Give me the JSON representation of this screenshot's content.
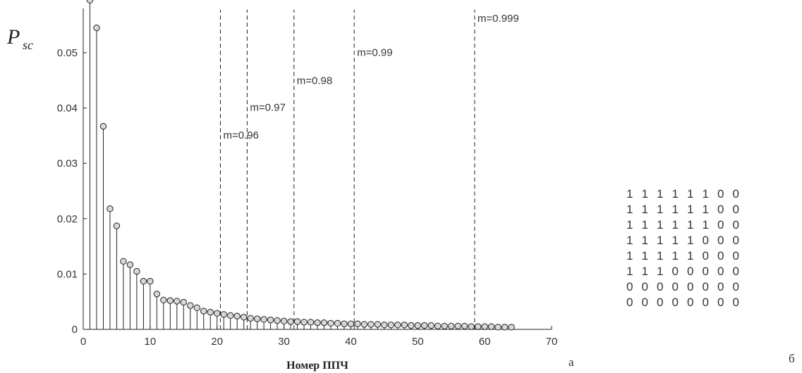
{
  "chart_data": {
    "type": "stem",
    "ylabel_main": "P",
    "ylabel_sub": "sc",
    "xlabel": "Номер ППЧ",
    "xlim": [
      0,
      70
    ],
    "ylim": [
      0,
      0.058
    ],
    "xticks": [
      0,
      10,
      20,
      30,
      40,
      50,
      60,
      70
    ],
    "xtick_labels": [
      "0",
      "10",
      "20",
      "30",
      "40",
      "50",
      "60",
      "70"
    ],
    "yticks": [
      0,
      0.01,
      0.02,
      0.03,
      0.04,
      0.05
    ],
    "ytick_labels": [
      "0",
      "0.01",
      "0.02",
      "0.03",
      "0.04",
      "0.05"
    ],
    "x": [
      1,
      2,
      3,
      4,
      5,
      6,
      7,
      8,
      9,
      10,
      11,
      12,
      13,
      14,
      15,
      16,
      17,
      18,
      19,
      20,
      21,
      22,
      23,
      24,
      25,
      26,
      27,
      28,
      29,
      30,
      31,
      32,
      33,
      34,
      35,
      36,
      37,
      38,
      39,
      40,
      41,
      42,
      43,
      44,
      45,
      46,
      47,
      48,
      49,
      50,
      51,
      52,
      53,
      54,
      55,
      56,
      57,
      58,
      59,
      60,
      61,
      62,
      63,
      64
    ],
    "values": [
      0.0595,
      0.0545,
      0.0367,
      0.0218,
      0.0187,
      0.0123,
      0.0117,
      0.0105,
      0.0087,
      0.0087,
      0.0064,
      0.0053,
      0.0052,
      0.0051,
      0.0049,
      0.0043,
      0.0039,
      0.0033,
      0.0031,
      0.0029,
      0.0027,
      0.0025,
      0.0024,
      0.0022,
      0.002,
      0.0019,
      0.0018,
      0.0017,
      0.0016,
      0.0015,
      0.0014,
      0.0014,
      0.0013,
      0.0013,
      0.0012,
      0.0012,
      0.0011,
      0.0011,
      0.001,
      0.001,
      0.001,
      0.0009,
      0.0009,
      0.0009,
      0.0008,
      0.0008,
      0.0008,
      0.0008,
      0.0007,
      0.0007,
      0.0007,
      0.0007,
      0.0006,
      0.0006,
      0.0006,
      0.0006,
      0.0006,
      0.0005,
      0.0005,
      0.0005,
      0.0005,
      0.0004,
      0.0004,
      0.0004
    ],
    "thresholds": [
      {
        "x": 20.5,
        "label": "m=0.96",
        "label_y": 0.0345
      },
      {
        "x": 24.5,
        "label": "m=0.97",
        "label_y": 0.0395
      },
      {
        "x": 31.5,
        "label": "m=0.98",
        "label_y": 0.0443
      },
      {
        "x": 40.5,
        "label": "m=0.99",
        "label_y": 0.0494
      },
      {
        "x": 58.5,
        "label": "m=0.999",
        "label_y": 0.0556
      }
    ]
  },
  "matrix": {
    "rows": [
      [
        "1",
        "1",
        "1",
        "1",
        "1",
        "1",
        "0",
        "0"
      ],
      [
        "1",
        "1",
        "1",
        "1",
        "1",
        "1",
        "0",
        "0"
      ],
      [
        "1",
        "1",
        "1",
        "1",
        "1",
        "1",
        "0",
        "0"
      ],
      [
        "1",
        "1",
        "1",
        "1",
        "1",
        "0",
        "0",
        "0"
      ],
      [
        "1",
        "1",
        "1",
        "1",
        "1",
        "0",
        "0",
        "0"
      ],
      [
        "1",
        "1",
        "1",
        "0",
        "0",
        "0",
        "0",
        "0"
      ],
      [
        "0",
        "0",
        "0",
        "0",
        "0",
        "0",
        "0",
        "0"
      ],
      [
        "0",
        "0",
        "0",
        "0",
        "0",
        "0",
        "0",
        "0"
      ]
    ]
  },
  "captions": {
    "a": "а",
    "b": "б"
  },
  "colors": {
    "axis": "#222222",
    "stem": "#222222",
    "marker_fill": "#d8d8d8",
    "dashed": "#222222"
  }
}
